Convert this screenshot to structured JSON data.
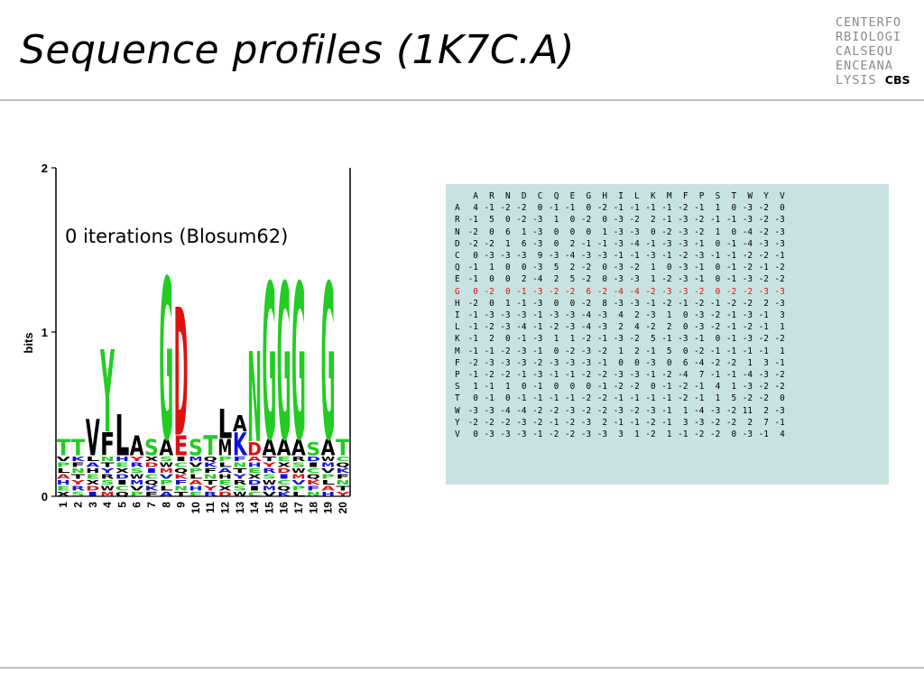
{
  "slide": {
    "title": "Sequence profiles (1K7C.A)"
  },
  "logo": {
    "lines": [
      "CENTERFO",
      "RBIOLOGI",
      "CALSEQU",
      "ENCEANA"
    ],
    "last_prefix": "LYSIS",
    "last_bold": "CBS"
  },
  "logo_plot": {
    "caption": "0 iterations (Blosum62)",
    "ylabel": "bits",
    "yticks": [
      "0",
      "1",
      "2"
    ],
    "positions": [
      "1",
      "2",
      "3",
      "4",
      "5",
      "6",
      "7",
      "8",
      "9",
      "10",
      "11",
      "12",
      "13",
      "14",
      "15",
      "16",
      "17",
      "18",
      "19",
      "20"
    ],
    "columns": [
      {
        "top": "T",
        "top_h": 0.1,
        "top_color": "#22cc22"
      },
      {
        "top": "T",
        "top_h": 0.1,
        "top_color": "#22cc22"
      },
      {
        "top": "V",
        "top_h": 0.22,
        "top_color": "#000000"
      },
      {
        "top": "Y",
        "top_h": 0.5,
        "top_color": "#22cc22",
        "second": "F",
        "second_h": 0.14,
        "second_color": "#000000"
      },
      {
        "top": "L",
        "top_h": 0.25,
        "top_color": "#000000"
      },
      {
        "top": "A",
        "top_h": 0.12,
        "top_color": "#000000"
      },
      {
        "top": "S",
        "top_h": 0.1,
        "top_color": "#22cc22"
      },
      {
        "top": "G",
        "top_h": 0.98,
        "top_color": "#22cc22",
        "second": "A",
        "second_h": 0.1,
        "second_color": "#000000"
      },
      {
        "top": "D",
        "top_h": 0.78,
        "top_color": "#dd1111",
        "second": "E",
        "second_h": 0.12,
        "second_color": "#dd1111"
      },
      {
        "top": "S",
        "top_h": 0.1,
        "top_color": "#22cc22"
      },
      {
        "top": "T",
        "top_h": 0.12,
        "top_color": "#22cc22"
      },
      {
        "top": "L",
        "top_h": 0.18,
        "top_color": "#000000",
        "second": "M",
        "second_h": 0.1,
        "second_color": "#000000"
      },
      {
        "top": "A",
        "top_h": 0.1,
        "top_color": "#000000",
        "second": "K",
        "second_h": 0.14,
        "second_color": "#1111dd"
      },
      {
        "top": "N",
        "top_h": 0.55,
        "top_color": "#22cc22",
        "second": "D",
        "second_h": 0.08,
        "second_color": "#dd1111"
      },
      {
        "top": "G",
        "top_h": 0.95,
        "top_color": "#22cc22",
        "second": "A",
        "second_h": 0.1,
        "second_color": "#000000"
      },
      {
        "top": "G",
        "top_h": 0.95,
        "top_color": "#22cc22",
        "second": "A",
        "second_h": 0.1,
        "second_color": "#000000"
      },
      {
        "top": "G",
        "top_h": 0.95,
        "top_color": "#22cc22",
        "second": "A",
        "second_h": 0.1,
        "second_color": "#000000"
      },
      {
        "top": "S",
        "top_h": 0.08,
        "top_color": "#22cc22"
      },
      {
        "top": "G",
        "top_h": 0.95,
        "top_color": "#22cc22",
        "second": "A",
        "second_h": 0.1,
        "second_color": "#000000"
      },
      {
        "top": "T",
        "top_h": 0.1,
        "top_color": "#22cc22"
      }
    ]
  },
  "matrix": {
    "header": [
      "A",
      "R",
      "N",
      "D",
      "C",
      "Q",
      "E",
      "G",
      "H",
      "I",
      "L",
      "K",
      "M",
      "F",
      "P",
      "S",
      "T",
      "W",
      "Y",
      "V"
    ],
    "highlight_row": "G",
    "rows": [
      {
        "label": "A",
        "values": [
          "4",
          "-1",
          "-2",
          "-2",
          "0",
          "-1",
          "-1",
          "0",
          "-2",
          "-1",
          "-1",
          "-1",
          "-1",
          "-2",
          "-1",
          "1",
          "0",
          "-3",
          "-2",
          "0"
        ]
      },
      {
        "label": "R",
        "values": [
          "-1",
          "5",
          "0",
          "-2",
          "-3",
          "1",
          "0",
          "-2",
          "0",
          "-3",
          "-2",
          "2",
          "-1",
          "-3",
          "-2",
          "-1",
          "-1",
          "-3",
          "-2",
          "-3"
        ]
      },
      {
        "label": "N",
        "values": [
          "-2",
          "0",
          "6",
          "1",
          "-3",
          "0",
          "0",
          "0",
          "1",
          "-3",
          "-3",
          "0",
          "-2",
          "-3",
          "-2",
          "1",
          "0",
          "-4",
          "-2",
          "-3"
        ]
      },
      {
        "label": "D",
        "values": [
          "-2",
          "-2",
          "1",
          "6",
          "-3",
          "0",
          "2",
          "-1",
          "-1",
          "-3",
          "-4",
          "-1",
          "-3",
          "-3",
          "-1",
          "0",
          "-1",
          "-4",
          "-3",
          "-3"
        ]
      },
      {
        "label": "C",
        "values": [
          "0",
          "-3",
          "-3",
          "-3",
          "9",
          "-3",
          "-4",
          "-3",
          "-3",
          "-1",
          "-1",
          "-3",
          "-1",
          "-2",
          "-3",
          "-1",
          "-1",
          "-2",
          "-2",
          "-1"
        ]
      },
      {
        "label": "Q",
        "values": [
          "-1",
          "1",
          "0",
          "0",
          "-3",
          "5",
          "2",
          "-2",
          "0",
          "-3",
          "-2",
          "1",
          "0",
          "-3",
          "-1",
          "0",
          "-1",
          "-2",
          "-1",
          "-2"
        ]
      },
      {
        "label": "E",
        "values": [
          "-1",
          "0",
          "0",
          "2",
          "-4",
          "2",
          "5",
          "-2",
          "0",
          "-3",
          "-3",
          "1",
          "-2",
          "-3",
          "-1",
          "0",
          "-1",
          "-3",
          "-2",
          "-2"
        ]
      },
      {
        "label": "G",
        "values": [
          "0",
          "-2",
          "0",
          "-1",
          "-3",
          "-2",
          "-2",
          "6",
          "-2",
          "-4",
          "-4",
          "-2",
          "-3",
          "-3",
          "-2",
          "0",
          "-2",
          "-2",
          "-3",
          "-3"
        ]
      },
      {
        "label": "H",
        "values": [
          "-2",
          "0",
          "1",
          "-1",
          "-3",
          "0",
          "0",
          "-2",
          "8",
          "-3",
          "-3",
          "-1",
          "-2",
          "-1",
          "-2",
          "-1",
          "-2",
          "-2",
          "2",
          "-3"
        ]
      },
      {
        "label": "I",
        "values": [
          "-1",
          "-3",
          "-3",
          "-3",
          "-1",
          "-3",
          "-3",
          "-4",
          "-3",
          "4",
          "2",
          "-3",
          "1",
          "0",
          "-3",
          "-2",
          "-1",
          "-3",
          "-1",
          "3"
        ]
      },
      {
        "label": "L",
        "values": [
          "-1",
          "-2",
          "-3",
          "-4",
          "-1",
          "-2",
          "-3",
          "-4",
          "-3",
          "2",
          "4",
          "-2",
          "2",
          "0",
          "-3",
          "-2",
          "-1",
          "-2",
          "-1",
          "1"
        ]
      },
      {
        "label": "K",
        "values": [
          "-1",
          "2",
          "0",
          "-1",
          "-3",
          "1",
          "1",
          "-2",
          "-1",
          "-3",
          "-2",
          "5",
          "-1",
          "-3",
          "-1",
          "0",
          "-1",
          "-3",
          "-2",
          "-2"
        ]
      },
      {
        "label": "M",
        "values": [
          "-1",
          "-1",
          "-2",
          "-3",
          "-1",
          "0",
          "-2",
          "-3",
          "-2",
          "1",
          "2",
          "-1",
          "5",
          "0",
          "-2",
          "-1",
          "-1",
          "-1",
          "-1",
          "1"
        ]
      },
      {
        "label": "F",
        "values": [
          "-2",
          "-3",
          "-3",
          "-3",
          "-2",
          "-3",
          "-3",
          "-3",
          "-1",
          "0",
          "0",
          "-3",
          "0",
          "6",
          "-4",
          "-2",
          "-2",
          "1",
          "3",
          "-1"
        ]
      },
      {
        "label": "P",
        "values": [
          "-1",
          "-2",
          "-2",
          "-1",
          "-3",
          "-1",
          "-1",
          "-2",
          "-2",
          "-3",
          "-3",
          "-1",
          "-2",
          "-4",
          "7",
          "-1",
          "-1",
          "-4",
          "-3",
          "-2"
        ]
      },
      {
        "label": "S",
        "values": [
          "1",
          "-1",
          "1",
          "0",
          "-1",
          "0",
          "0",
          "0",
          "-1",
          "-2",
          "-2",
          "0",
          "-1",
          "-2",
          "-1",
          "4",
          "1",
          "-3",
          "-2",
          "-2"
        ]
      },
      {
        "label": "T",
        "values": [
          "0",
          "-1",
          "0",
          "-1",
          "-1",
          "-1",
          "-1",
          "-2",
          "-2",
          "-1",
          "-1",
          "-1",
          "-1",
          "-2",
          "-1",
          "1",
          "5",
          "-2",
          "-2",
          "0"
        ]
      },
      {
        "label": "W",
        "values": [
          "-3",
          "-3",
          "-4",
          "-4",
          "-2",
          "-2",
          "-3",
          "-2",
          "-2",
          "-3",
          "-2",
          "-3",
          "-1",
          "1",
          "-4",
          "-3",
          "-2",
          "11",
          "2",
          "-3"
        ]
      },
      {
        "label": "Y",
        "values": [
          "-2",
          "-2",
          "-2",
          "-3",
          "-2",
          "-1",
          "-2",
          "-3",
          "2",
          "-1",
          "-1",
          "-2",
          "-1",
          "3",
          "-3",
          "-2",
          "-2",
          "2",
          "7",
          "-1"
        ]
      },
      {
        "label": "V",
        "values": [
          "0",
          "-3",
          "-3",
          "-3",
          "-1",
          "-2",
          "-2",
          "-3",
          "-3",
          "3",
          "1",
          "-2",
          "1",
          "-1",
          "-2",
          "-2",
          "0",
          "-3",
          "-1",
          "4"
        ]
      }
    ]
  }
}
